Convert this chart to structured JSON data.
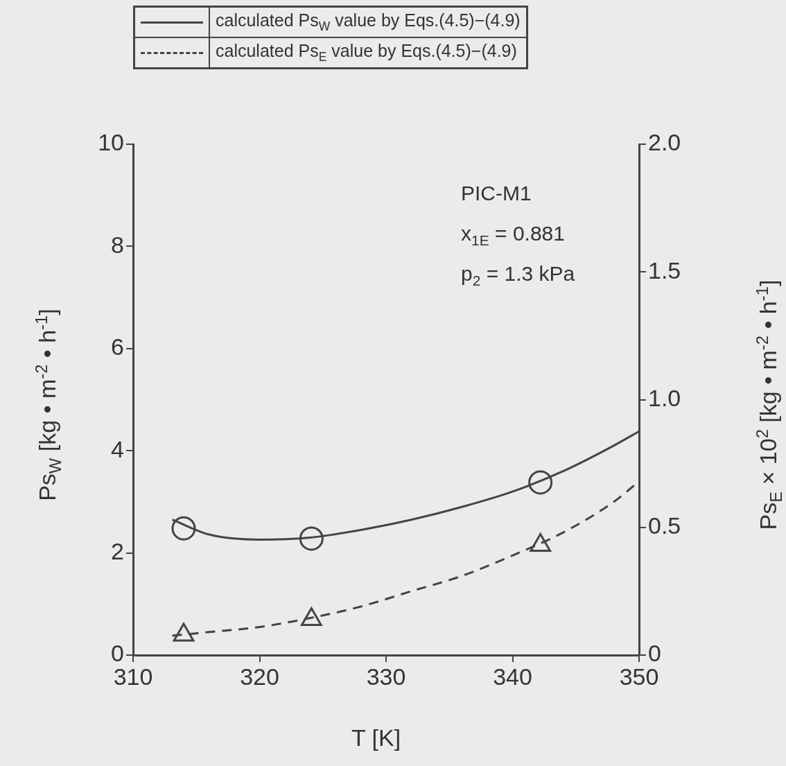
{
  "chart_data": {
    "type": "line",
    "xlabel": "T  [K]",
    "ylabel": "Ps$_{W}$ [kg • m$^{-2}$ • h$^{-1}$]",
    "y2label": "Ps$_{E}$ × 10$^{2}$ [kg • m$^{-2}$ • h$^{-1}$]",
    "xlim": [
      310,
      350
    ],
    "xticks": [
      310,
      320,
      330,
      340,
      350
    ],
    "ylim": [
      0,
      10
    ],
    "yticks": [
      0,
      2,
      4,
      6,
      8,
      10
    ],
    "y2lim": [
      0,
      2.0
    ],
    "y2ticks": [
      0,
      0.5,
      {
        "value": 1,
        "label": "1.0"
      },
      1.5,
      {
        "value": 2,
        "label": "2.0"
      }
    ],
    "grid": false,
    "legend": "top",
    "annotations": [
      "PIC-M1",
      "x$_{1E}$ = 0.881",
      "p$_{2}$ = 1.3 kPa"
    ],
    "series": [
      {
        "name": "calculated Ps$_{W}$ value by Eqs.(4.5)−(4.9)",
        "type": "line",
        "color": "#444444",
        "marker": "none",
        "line_style": "solid",
        "x": [
          313.1,
          316,
          320,
          324,
          328,
          332,
          336,
          340,
          344,
          348,
          350
        ],
        "values": [
          2.65,
          2.36,
          2.26,
          2.3,
          2.45,
          2.65,
          2.9,
          3.2,
          3.6,
          4.1,
          4.38
        ]
      },
      {
        "name": "calculated Ps$_{E}$ value by Eqs.(4.5)−(4.9)",
        "type": "line",
        "axis": "y2",
        "color": "#444444",
        "marker": "none",
        "line_style": "dashed",
        "x": [
          313.1,
          316,
          320,
          324,
          328,
          332,
          336,
          340,
          344,
          348,
          350
        ],
        "values": [
          0.076,
          0.09,
          0.11,
          0.145,
          0.19,
          0.25,
          0.31,
          0.39,
          0.48,
          0.6,
          0.68
        ]
      },
      {
        "type": "scatter",
        "color": "#444444",
        "marker": "circle",
        "x": [
          314,
          324.1,
          342.2
        ],
        "values": [
          2.48,
          2.28,
          3.38
        ]
      },
      {
        "type": "scatter",
        "axis": "y2",
        "color": "#444444",
        "marker": "triangle",
        "x": [
          314,
          324.1,
          342.2
        ],
        "values": [
          0.079,
          0.14,
          0.43
        ]
      }
    ]
  }
}
